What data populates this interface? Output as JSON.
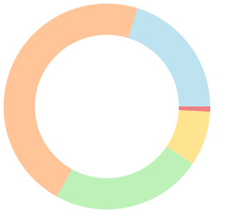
{
  "chart_data": {
    "type": "donut",
    "values": [
      20.2,
      0.8,
      8.6,
      23.6,
      46.8
    ],
    "colors": [
      "#bde3f0",
      "#f08080",
      "#fee490",
      "#bdf1b8",
      "#ffc599"
    ]
  }
}
